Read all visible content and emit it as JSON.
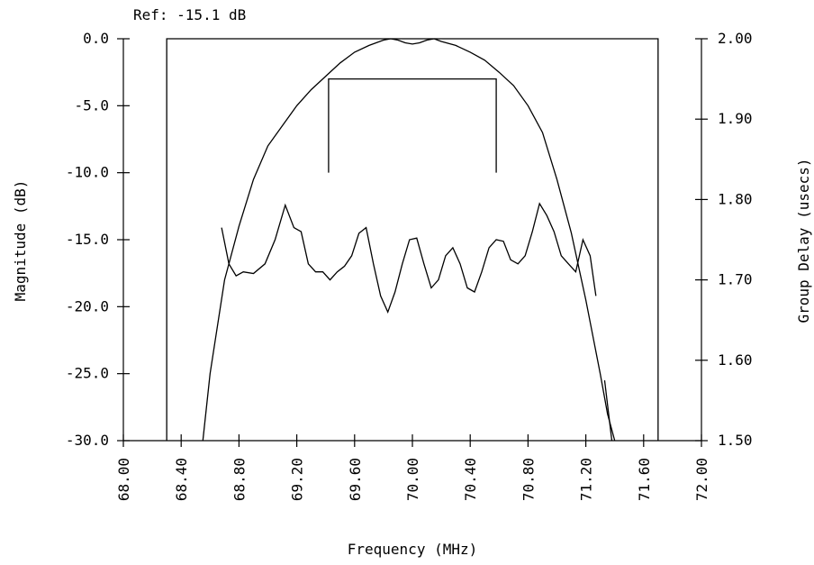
{
  "chart_data": {
    "type": "line",
    "title": "Ref: -15.1 dB",
    "xlabel": "Frequency (MHz)",
    "ylabel_left": "Magnitude (dB)",
    "ylabel_right": "Group Delay (usecs)",
    "xlim": [
      68.0,
      72.0
    ],
    "ylim_left": [
      -30.0,
      0.0
    ],
    "ylim_right": [
      1.5,
      2.0
    ],
    "x_ticks": [
      "68.00",
      "68.40",
      "68.80",
      "69.20",
      "69.60",
      "70.00",
      "70.40",
      "70.80",
      "71.20",
      "71.60",
      "72.00"
    ],
    "y_left_ticks": [
      "0.0",
      "-5.0",
      "-10.0",
      "-15.0",
      "-20.0",
      "-25.0",
      "-30.0"
    ],
    "y_right_ticks": [
      "2.00",
      "1.90",
      "1.80",
      "1.70",
      "1.60",
      "1.50"
    ],
    "grid": false,
    "series": [
      {
        "axis": "left",
        "x": [
          68.55,
          68.6,
          68.7,
          68.8,
          68.9,
          69.0,
          69.1,
          69.2,
          69.3,
          69.4,
          69.5,
          69.6,
          69.7,
          69.8,
          69.85,
          69.9,
          69.95,
          70.0,
          70.05,
          70.1,
          70.15,
          70.2,
          70.3,
          70.4,
          70.5,
          70.6,
          70.7,
          70.8,
          70.9,
          71.0,
          71.1,
          71.2,
          71.3,
          71.35,
          71.4
        ],
        "y": [
          -30.0,
          -25.0,
          -18.0,
          -14.0,
          -10.5,
          -8.0,
          -6.5,
          -5.0,
          -3.8,
          -2.8,
          -1.8,
          -1.0,
          -0.5,
          -0.1,
          0.0,
          -0.1,
          -0.3,
          -0.4,
          -0.3,
          -0.1,
          0.0,
          -0.2,
          -0.5,
          -1.0,
          -1.6,
          -2.5,
          -3.5,
          -5.0,
          -7.0,
          -10.5,
          -14.5,
          -19.5,
          -25.0,
          -28.0,
          -30.0
        ]
      },
      {
        "axis": "right",
        "x": [
          68.68,
          68.73,
          68.78,
          68.83,
          68.9,
          68.98,
          69.05,
          69.12,
          69.18,
          69.23,
          69.28,
          69.33,
          69.38,
          69.43,
          69.48,
          69.53,
          69.58,
          69.63,
          69.68,
          69.73,
          69.78,
          69.83,
          69.88,
          69.93,
          69.98,
          70.03,
          70.08,
          70.13,
          70.18,
          70.23,
          70.28,
          70.33,
          70.38,
          70.43,
          70.48,
          70.53,
          70.58,
          70.63,
          70.68,
          70.73,
          70.78,
          70.83,
          70.88,
          70.93,
          70.98,
          71.03,
          71.08,
          71.13,
          71.18,
          71.23,
          71.27
        ],
        "y": [
          1.765,
          1.72,
          1.705,
          1.71,
          1.708,
          1.72,
          1.75,
          1.793,
          1.765,
          1.76,
          1.72,
          1.71,
          1.71,
          1.7,
          1.71,
          1.717,
          1.73,
          1.758,
          1.765,
          1.72,
          1.68,
          1.66,
          1.685,
          1.72,
          1.75,
          1.752,
          1.72,
          1.69,
          1.7,
          1.73,
          1.74,
          1.72,
          1.69,
          1.685,
          1.71,
          1.74,
          1.75,
          1.748,
          1.725,
          1.72,
          1.73,
          1.76,
          1.795,
          1.78,
          1.76,
          1.73,
          1.72,
          1.71,
          1.75,
          1.73,
          1.68
        ]
      }
    ],
    "annotations": [
      {
        "type": "box",
        "x": [
          68.3,
          71.7
        ],
        "y_left": [
          -30.0,
          0.0
        ]
      },
      {
        "type": "bracket",
        "x": [
          69.42,
          70.58
        ],
        "y_left": [
          -10.0,
          -3.0
        ]
      },
      {
        "type": "segment",
        "x": [
          71.33,
          71.38
        ],
        "y_left": [
          -25.5,
          -30.0
        ]
      }
    ]
  }
}
